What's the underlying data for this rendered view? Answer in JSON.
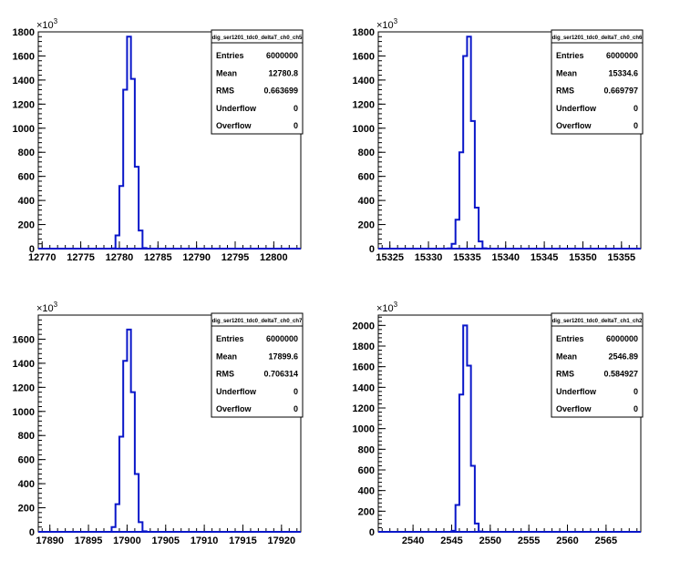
{
  "charts_meta": {
    "stats_labels": [
      "Entries",
      "Mean",
      "RMS",
      "Underflow",
      "Overflow"
    ],
    "exponent_prefix": "×10",
    "exponent_power": "3",
    "line_color": "#0a17c9"
  },
  "chart_data": [
    {
      "type": "bar",
      "title": "dig_ser1201_tdc0_deltaT_ch0_ch5",
      "xlim": [
        12769.5,
        12803.5
      ],
      "ylim": [
        0,
        1800
      ],
      "x_ticks": [
        12770,
        12775,
        12780,
        12785,
        12790,
        12795,
        12800
      ],
      "y_ticks": [
        0,
        200,
        400,
        600,
        800,
        1000,
        1200,
        1400,
        1600,
        1800
      ],
      "y_exponent": "×10^3",
      "bin_width": 0.5,
      "bins": [
        {
          "low": 12779.0,
          "value": 2
        },
        {
          "low": 12779.5,
          "value": 110
        },
        {
          "low": 12780.0,
          "value": 520
        },
        {
          "low": 12780.5,
          "value": 1320
        },
        {
          "low": 12781.0,
          "value": 1760
        },
        {
          "low": 12781.5,
          "value": 1410
        },
        {
          "low": 12782.0,
          "value": 680
        },
        {
          "low": 12782.5,
          "value": 150
        },
        {
          "low": 12783.0,
          "value": 5
        }
      ],
      "stats": {
        "Entries": "6000000",
        "Mean": "12780.8",
        "RMS": "0.663699",
        "Underflow": "0",
        "Overflow": "0"
      }
    },
    {
      "type": "bar",
      "title": "dig_ser1201_tdc0_deltaT_ch0_ch6",
      "xlim": [
        15323.5,
        15357.5
      ],
      "ylim": [
        0,
        1800
      ],
      "x_ticks": [
        15325,
        15330,
        15335,
        15340,
        15345,
        15350,
        15355
      ],
      "y_ticks": [
        0,
        200,
        400,
        600,
        800,
        1000,
        1200,
        1400,
        1600,
        1800
      ],
      "y_exponent": "×10^3",
      "bin_width": 0.5,
      "bins": [
        {
          "low": 15332.5,
          "value": 2
        },
        {
          "low": 15333.0,
          "value": 40
        },
        {
          "low": 15333.5,
          "value": 240
        },
        {
          "low": 15334.0,
          "value": 800
        },
        {
          "low": 15334.5,
          "value": 1600
        },
        {
          "low": 15335.0,
          "value": 1760
        },
        {
          "low": 15335.5,
          "value": 1060
        },
        {
          "low": 15336.0,
          "value": 340
        },
        {
          "low": 15336.5,
          "value": 60
        },
        {
          "low": 15337.0,
          "value": 3
        }
      ],
      "stats": {
        "Entries": "6000000",
        "Mean": "15334.6",
        "RMS": "0.669797",
        "Underflow": "0",
        "Overflow": "0"
      }
    },
    {
      "type": "bar",
      "title": "dig_ser1201_tdc0_deltaT_ch0_ch7",
      "xlim": [
        17888.5,
        17922.5
      ],
      "ylim": [
        0,
        1800
      ],
      "x_ticks": [
        17890,
        17895,
        17900,
        17905,
        17910,
        17915,
        17920
      ],
      "y_ticks": [
        0,
        200,
        400,
        600,
        800,
        1000,
        1200,
        1400,
        1600
      ],
      "y_exponent": "×10^3",
      "bin_width": 0.5,
      "bins": [
        {
          "low": 17898.0,
          "value": 40
        },
        {
          "low": 17898.5,
          "value": 230
        },
        {
          "low": 17899.0,
          "value": 790
        },
        {
          "low": 17899.5,
          "value": 1420
        },
        {
          "low": 17900.0,
          "value": 1680
        },
        {
          "low": 17900.5,
          "value": 1160
        },
        {
          "low": 17901.0,
          "value": 480
        },
        {
          "low": 17901.5,
          "value": 80
        },
        {
          "low": 17902.0,
          "value": 5
        }
      ],
      "stats": {
        "Entries": "6000000",
        "Mean": "17899.6",
        "RMS": "0.706314",
        "Underflow": "0",
        "Overflow": "0"
      }
    },
    {
      "type": "bar",
      "title": "dig_ser1201_tdc0_deltaT_ch1_ch2",
      "xlim": [
        2535.5,
        2569.5
      ],
      "ylim": [
        0,
        2100
      ],
      "x_ticks": [
        2540,
        2545,
        2550,
        2555,
        2560,
        2565
      ],
      "y_ticks": [
        0,
        200,
        400,
        600,
        800,
        1000,
        1200,
        1400,
        1600,
        1800,
        2000
      ],
      "y_exponent": "×10^3",
      "bin_width": 0.5,
      "bins": [
        {
          "low": 2545.0,
          "value": 10
        },
        {
          "low": 2545.5,
          "value": 260
        },
        {
          "low": 2546.0,
          "value": 1330
        },
        {
          "low": 2546.5,
          "value": 2000
        },
        {
          "low": 2547.0,
          "value": 1610
        },
        {
          "low": 2547.5,
          "value": 640
        },
        {
          "low": 2548.0,
          "value": 80
        },
        {
          "low": 2548.5,
          "value": 3
        }
      ],
      "stats": {
        "Entries": "6000000",
        "Mean": "2546.89",
        "RMS": "0.584927",
        "Underflow": "0",
        "Overflow": "0"
      }
    }
  ]
}
